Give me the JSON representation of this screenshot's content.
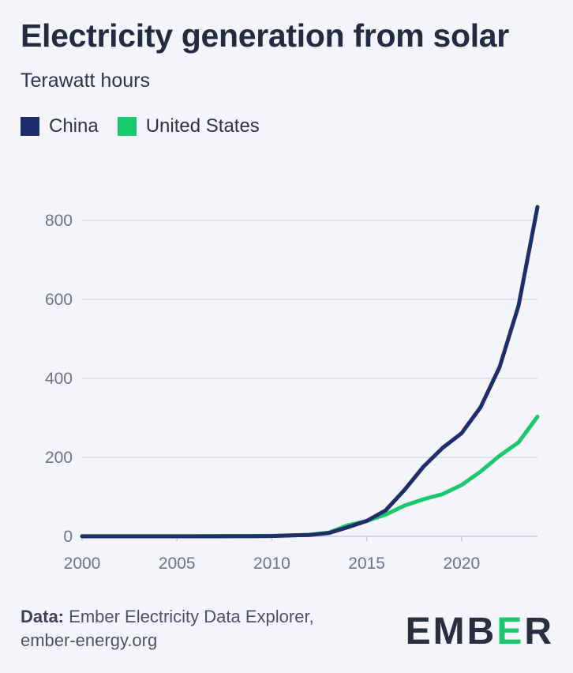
{
  "header": {
    "title": "Electricity generation from solar",
    "subtitle": "Terawatt hours"
  },
  "footer": {
    "data_label": "Data:",
    "source_line1": "Ember Electricity Data Explorer,",
    "source_line2": "ember-energy.org"
  },
  "logo": {
    "prefix": "EMB",
    "accent": "E",
    "suffix": "R"
  },
  "colors": {
    "china": "#1f2d6b",
    "united_states": "#19c86c",
    "grid": "#d6d9e6",
    "axis": "#c7cbdb"
  },
  "chart_data": {
    "type": "line",
    "title": "Electricity generation from solar",
    "ylabel": "Terawatt hours",
    "xlim": [
      2000,
      2024
    ],
    "ylim": [
      0,
      800
    ],
    "x_ticks": [
      2000,
      2005,
      2010,
      2015,
      2020
    ],
    "y_ticks": [
      0,
      200,
      400,
      600,
      800
    ],
    "grid": true,
    "legend_position": "top-left",
    "x": [
      2000,
      2001,
      2002,
      2003,
      2004,
      2005,
      2006,
      2007,
      2008,
      2009,
      2010,
      2011,
      2012,
      2013,
      2014,
      2015,
      2016,
      2017,
      2018,
      2019,
      2020,
      2021,
      2022,
      2023,
      2024
    ],
    "series": [
      {
        "name": "China",
        "color": "#1f2d6b",
        "values": [
          0,
          0,
          0,
          0,
          0,
          0,
          0,
          0.1,
          0.2,
          0.3,
          0.7,
          2.6,
          3.6,
          8.4,
          23,
          39,
          66,
          118,
          177,
          224,
          261,
          327,
          428,
          584,
          834
        ]
      },
      {
        "name": "United States",
        "color": "#19c86c",
        "values": [
          0.5,
          0.5,
          0.6,
          0.6,
          0.6,
          0.6,
          0.6,
          0.7,
          0.9,
          1,
          1.3,
          2,
          4.3,
          9.2,
          28,
          39,
          55,
          78,
          94,
          107,
          130,
          164,
          204,
          238,
          303
        ]
      }
    ]
  }
}
